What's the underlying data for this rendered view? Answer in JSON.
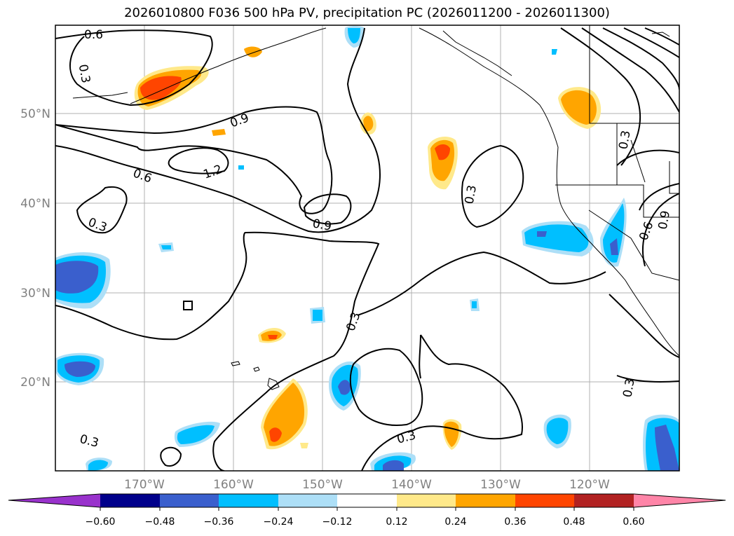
{
  "title": "2026010800 F036 500 hPa PV, precipitation PC (2026011200 - 2026011300)",
  "longitude_labels": [
    "170°W",
    "160°W",
    "150°W",
    "140°W",
    "130°W",
    "120°W"
  ],
  "latitude_labels": [
    "50°N",
    "40°N",
    "30°N",
    "20°N"
  ],
  "pv_contour_labels": [
    "0.6",
    "0.3",
    "0.9",
    "1.2",
    "0.6",
    "0.9",
    "0.3",
    "0.3",
    "0.3",
    "0.3",
    "0.3",
    "0.9",
    "0.6",
    "0.3",
    "0.3"
  ],
  "colorbar": {
    "tick_labels": [
      "−0.60",
      "−0.48",
      "−0.36",
      "−0.24",
      "−0.12",
      "0.12",
      "0.24",
      "0.36",
      "0.48",
      "0.60"
    ],
    "colors": [
      "#9932CC",
      "#00008B",
      "#3A5FCD",
      "#00BFFF",
      "#ADDFF7",
      "#FFFFFF",
      "#FFE98A",
      "#FFA500",
      "#FF4500",
      "#B22222",
      "#FF85A8"
    ]
  }
}
